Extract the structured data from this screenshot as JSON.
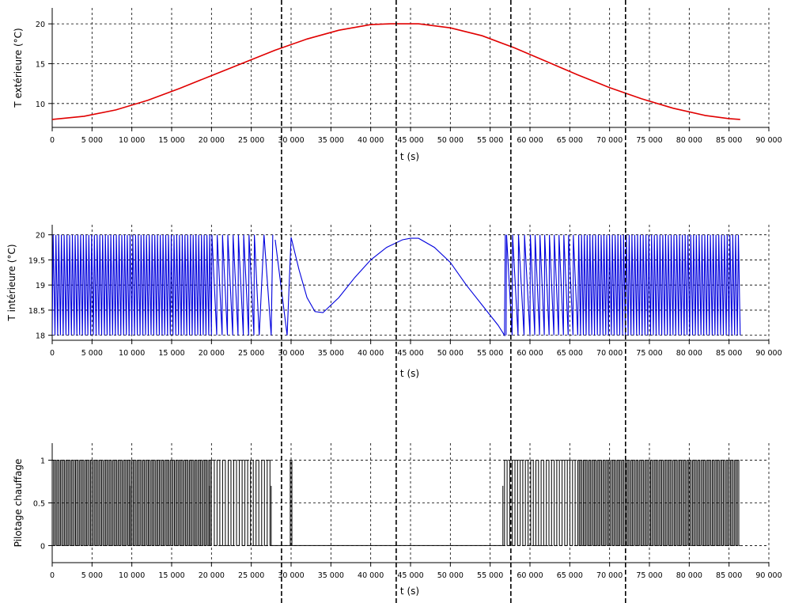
{
  "chart_data": [
    {
      "type": "line",
      "xlabel": "t (s)",
      "ylabel": "T extérieure (°C)",
      "xlim": [
        0,
        90000
      ],
      "ylim": [
        7,
        22
      ],
      "yticks": [
        10,
        15,
        20
      ],
      "ytick_labels": [
        "10",
        "15",
        "20"
      ],
      "grid": true,
      "color": "#e00000",
      "series": [
        {
          "x": [
            0,
            4000,
            8000,
            12000,
            16000,
            20000,
            24000,
            28000,
            32000,
            36000,
            40000,
            42500,
            46000,
            50000,
            54000,
            58000,
            62000,
            66000,
            70000,
            74000,
            78000,
            82000,
            85000,
            86400
          ],
          "values": [
            8.0,
            8.4,
            9.2,
            10.4,
            11.9,
            13.5,
            15.1,
            16.7,
            18.1,
            19.2,
            19.9,
            20.0,
            20.0,
            19.5,
            18.5,
            17.0,
            15.3,
            13.6,
            12.0,
            10.6,
            9.4,
            8.5,
            8.1,
            8.0
          ]
        }
      ]
    },
    {
      "type": "line",
      "xlabel": "t (s)",
      "ylabel": "T intérieure (°C)",
      "xlim": [
        0,
        90000
      ],
      "ylim": [
        17.9,
        20.2
      ],
      "yticks": [
        18,
        18.5,
        19,
        19.5,
        20
      ],
      "ytick_labels": [
        "18",
        "18.5",
        "19",
        "19.5",
        "20"
      ],
      "grid": true,
      "color": "#0000dd",
      "series": [
        {
          "description_of_shape": "hysteresis oscillation between 18 and 20",
          "x": [
            28000,
            29500,
            30000,
            31000,
            32000,
            33000,
            34000,
            36000,
            38000,
            40000,
            42000,
            44000,
            45000,
            46000,
            48000,
            50000,
            52000,
            54000,
            56000,
            56800
          ],
          "values": [
            19.9,
            18.0,
            19.95,
            19.3,
            18.75,
            18.47,
            18.45,
            18.75,
            19.15,
            19.5,
            19.75,
            19.9,
            19.93,
            19.93,
            19.75,
            19.45,
            19.0,
            18.6,
            18.2,
            18.0
          ]
        }
      ]
    },
    {
      "type": "line",
      "xlabel": "t (s)",
      "ylabel": "Pilotage chauffage",
      "xlim": [
        0,
        90000
      ],
      "ylim": [
        -0.2,
        1.2
      ],
      "yticks": [
        0,
        0.5,
        1
      ],
      "ytick_labels": [
        "0",
        "0.5",
        "1"
      ],
      "grid": true,
      "color": "#000000",
      "series": [
        {
          "x": [
            0,
            27500,
            27600,
            30000,
            30100,
            56700,
            56800,
            86400
          ],
          "values": [
            1,
            1,
            0,
            1,
            0,
            0,
            1,
            1
          ]
        }
      ]
    }
  ],
  "xticks": [
    0,
    5000,
    10000,
    15000,
    20000,
    25000,
    30000,
    35000,
    40000,
    45000,
    50000,
    55000,
    60000,
    65000,
    70000,
    75000,
    80000,
    85000,
    90000
  ],
  "xtick_labels": [
    "0",
    "5 000",
    "10 000",
    "15 000",
    "20 000",
    "25 000",
    "30 000",
    "35 000",
    "40 000",
    "45 000",
    "50 000",
    "55 000",
    "60 000",
    "65 000",
    "70 000",
    "75 000",
    "80 000",
    "85 000",
    "90 000"
  ],
  "vertical_markers_x": [
    28800,
    43200,
    57600,
    72000
  ]
}
